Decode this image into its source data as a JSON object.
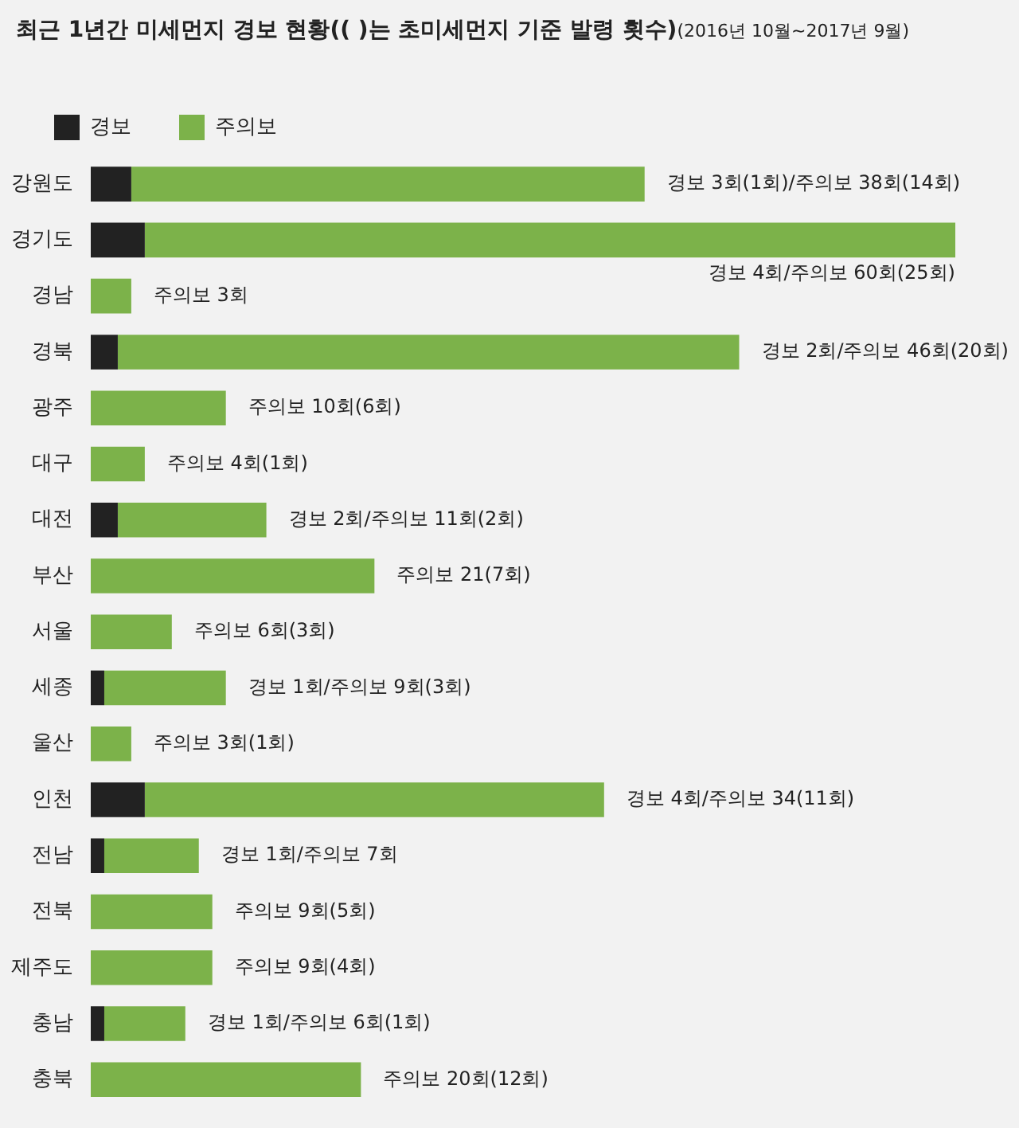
{
  "chart_data": {
    "type": "bar",
    "orientation": "horizontal",
    "stacked": true,
    "title": "최근 1년간 미세먼지 경보 현황(( )는 초미세먼지 기준 발령 횟수)",
    "subtitle": "(2016년 10월~2017년 9월)",
    "legend": "top left",
    "grid": false,
    "tick_labels": "y",
    "categories": [
      "강원도",
      "경기도",
      "경남",
      "경북",
      "광주",
      "대구",
      "대전",
      "부산",
      "서울",
      "세종",
      "울산",
      "인천",
      "전남",
      "전북",
      "제주도",
      "충남",
      "충북"
    ],
    "series": [
      {
        "name": "경보",
        "color": "#222222",
        "values": [
          3,
          4,
          0,
          2,
          0,
          0,
          2,
          0,
          0,
          1,
          0,
          4,
          1,
          0,
          0,
          1,
          0
        ]
      },
      {
        "name": "주의보",
        "color": "#7cb24a",
        "values": [
          38,
          60,
          3,
          46,
          10,
          4,
          11,
          21,
          6,
          9,
          3,
          34,
          7,
          9,
          9,
          6,
          20
        ],
        "value_labels": [
          "경보 3회(1회)/주의보 38회(14회)",
          "경보 4회/주의보 60회(25회)",
          "주의보 3회",
          "경보 2회/주의보 46회(20회)",
          "주의보 10회(6회)",
          "주의보 4회(1회)",
          "경보 2회/주의보 11회(2회)",
          "주의보 21(7회)",
          "주의보 6회(3회)",
          "경보 1회/주의보 9회(3회)",
          "주의보 3회(1회)",
          "경보 4회/주의보 34(11회)",
          "경보 1회/주의보 7회",
          "주의보 9회(5회)",
          "주의보 9회(4회)",
          "경보 1회/주의보 6회(1회)",
          "주의보 20회(12회)"
        ]
      }
    ]
  }
}
